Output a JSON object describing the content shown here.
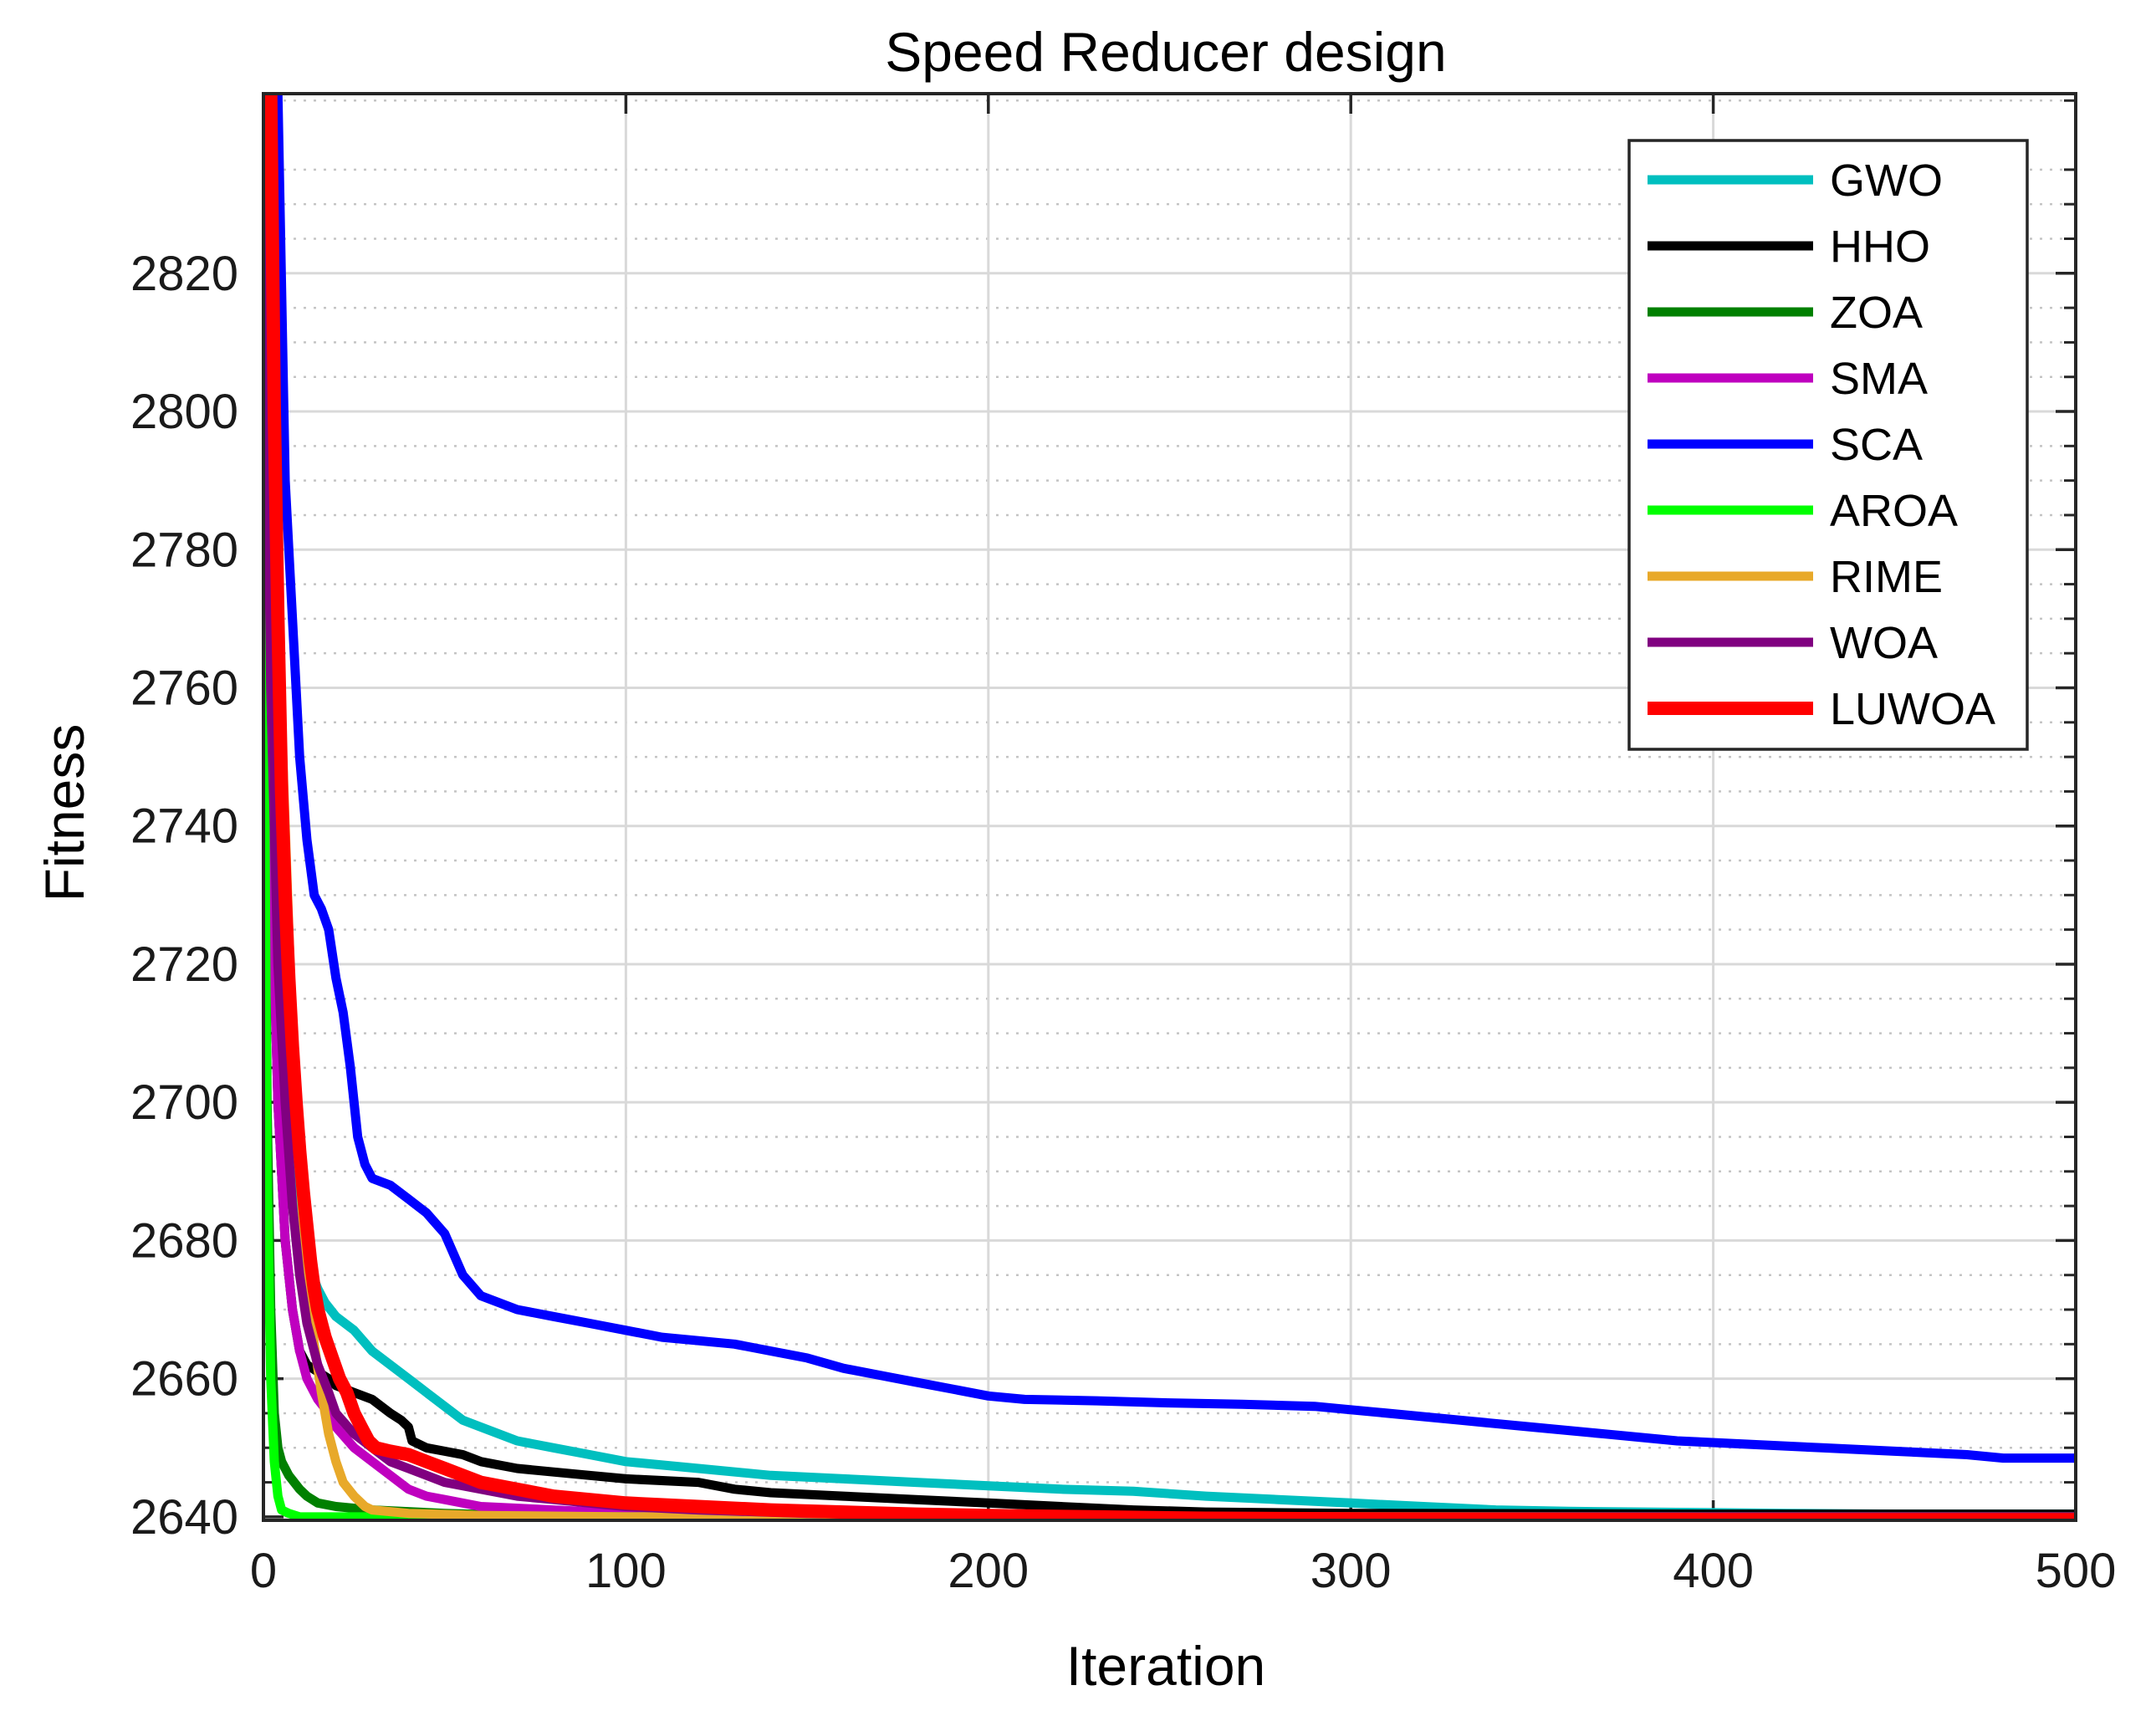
{
  "chart_data": {
    "type": "line",
    "title": "Speed Reducer design",
    "xlabel": "Iteration",
    "ylabel": "Fitness",
    "xlim": [
      0,
      500
    ],
    "ylim": [
      2639.5,
      2846
    ],
    "x_ticks": [
      0,
      100,
      200,
      300,
      400,
      500
    ],
    "y_ticks": [
      2640,
      2660,
      2680,
      2700,
      2720,
      2740,
      2760,
      2780,
      2800,
      2820
    ],
    "grid": true,
    "minor_grid": true,
    "legend_position": "top-right",
    "series": [
      {
        "name": "GWO",
        "color": "#00bfbf",
        "points": [
          [
            0,
            2845
          ],
          [
            2,
            2760
          ],
          [
            5,
            2715
          ],
          [
            8,
            2690
          ],
          [
            10,
            2680
          ],
          [
            12,
            2677
          ],
          [
            15,
            2673
          ],
          [
            17,
            2671
          ],
          [
            20,
            2669
          ],
          [
            25,
            2667
          ],
          [
            30,
            2664
          ],
          [
            35,
            2662
          ],
          [
            40,
            2660
          ],
          [
            45,
            2658
          ],
          [
            50,
            2656
          ],
          [
            55,
            2654
          ],
          [
            60,
            2653
          ],
          [
            70,
            2651
          ],
          [
            80,
            2650
          ],
          [
            90,
            2649
          ],
          [
            100,
            2648
          ],
          [
            120,
            2647
          ],
          [
            140,
            2646
          ],
          [
            160,
            2645.5
          ],
          [
            180,
            2645
          ],
          [
            200,
            2644.5
          ],
          [
            220,
            2644
          ],
          [
            240,
            2643.7
          ],
          [
            260,
            2643
          ],
          [
            280,
            2642.5
          ],
          [
            300,
            2642
          ],
          [
            320,
            2641.5
          ],
          [
            340,
            2641
          ],
          [
            360,
            2640.8
          ],
          [
            380,
            2640.7
          ],
          [
            400,
            2640.6
          ],
          [
            420,
            2640.5
          ],
          [
            450,
            2640.4
          ],
          [
            500,
            2640.4
          ]
        ]
      },
      {
        "name": "HHO",
        "color": "#000000",
        "points": [
          [
            0,
            2845
          ],
          [
            2,
            2740
          ],
          [
            4,
            2700
          ],
          [
            6,
            2680
          ],
          [
            8,
            2670
          ],
          [
            10,
            2664
          ],
          [
            12,
            2662
          ],
          [
            15,
            2661
          ],
          [
            18,
            2660
          ],
          [
            20,
            2659
          ],
          [
            25,
            2658
          ],
          [
            30,
            2657
          ],
          [
            35,
            2655
          ],
          [
            38,
            2654
          ],
          [
            40,
            2653
          ],
          [
            41,
            2651
          ],
          [
            45,
            2650
          ],
          [
            50,
            2649.5
          ],
          [
            55,
            2649
          ],
          [
            60,
            2648
          ],
          [
            70,
            2647
          ],
          [
            80,
            2646.5
          ],
          [
            90,
            2646
          ],
          [
            100,
            2645.5
          ],
          [
            120,
            2645
          ],
          [
            130,
            2644
          ],
          [
            140,
            2643.5
          ],
          [
            160,
            2643
          ],
          [
            180,
            2642.5
          ],
          [
            200,
            2642
          ],
          [
            220,
            2641.5
          ],
          [
            240,
            2641
          ],
          [
            260,
            2640.7
          ],
          [
            300,
            2640.5
          ],
          [
            400,
            2640.4
          ],
          [
            500,
            2640.4
          ]
        ]
      },
      {
        "name": "ZOA",
        "color": "#008000",
        "points": [
          [
            0,
            2780
          ],
          [
            1,
            2700
          ],
          [
            2,
            2670
          ],
          [
            3,
            2655
          ],
          [
            4,
            2650
          ],
          [
            5,
            2648
          ],
          [
            7,
            2646
          ],
          [
            10,
            2644
          ],
          [
            12,
            2643
          ],
          [
            15,
            2642
          ],
          [
            20,
            2641.5
          ],
          [
            30,
            2641
          ],
          [
            50,
            2640.5
          ],
          [
            70,
            2640.2
          ],
          [
            100,
            2640
          ],
          [
            200,
            2640
          ],
          [
            500,
            2640
          ]
        ]
      },
      {
        "name": "SMA",
        "color": "#bf00bf",
        "points": [
          [
            0,
            2845
          ],
          [
            2,
            2740
          ],
          [
            4,
            2700
          ],
          [
            6,
            2680
          ],
          [
            8,
            2670
          ],
          [
            10,
            2664
          ],
          [
            12,
            2660
          ],
          [
            15,
            2657
          ],
          [
            18,
            2655
          ],
          [
            20,
            2653
          ],
          [
            25,
            2650
          ],
          [
            30,
            2648
          ],
          [
            35,
            2646
          ],
          [
            40,
            2644
          ],
          [
            45,
            2643
          ],
          [
            50,
            2642.5
          ],
          [
            60,
            2641.5
          ],
          [
            80,
            2641
          ],
          [
            100,
            2640.5
          ],
          [
            150,
            2640.2
          ],
          [
            200,
            2640
          ],
          [
            500,
            2640
          ]
        ]
      },
      {
        "name": "SCA",
        "color": "#0000ff",
        "points": [
          [
            0,
            2846
          ],
          [
            4,
            2846
          ],
          [
            6,
            2790
          ],
          [
            8,
            2770
          ],
          [
            10,
            2750
          ],
          [
            12,
            2738
          ],
          [
            14,
            2730
          ],
          [
            16,
            2728
          ],
          [
            18,
            2725
          ],
          [
            20,
            2718
          ],
          [
            22,
            2713
          ],
          [
            24,
            2705
          ],
          [
            26,
            2695
          ],
          [
            28,
            2691
          ],
          [
            30,
            2689
          ],
          [
            35,
            2688
          ],
          [
            40,
            2686
          ],
          [
            45,
            2684
          ],
          [
            50,
            2681
          ],
          [
            55,
            2675
          ],
          [
            60,
            2672
          ],
          [
            65,
            2671
          ],
          [
            70,
            2670
          ],
          [
            80,
            2669
          ],
          [
            90,
            2668
          ],
          [
            100,
            2667
          ],
          [
            110,
            2666
          ],
          [
            120,
            2665.5
          ],
          [
            130,
            2665
          ],
          [
            140,
            2664
          ],
          [
            150,
            2663
          ],
          [
            160,
            2661.5
          ],
          [
            170,
            2660.5
          ],
          [
            180,
            2659.5
          ],
          [
            190,
            2658.5
          ],
          [
            200,
            2657.5
          ],
          [
            210,
            2657
          ],
          [
            230,
            2656.8
          ],
          [
            250,
            2656.5
          ],
          [
            270,
            2656.3
          ],
          [
            290,
            2656
          ],
          [
            300,
            2655.5
          ],
          [
            310,
            2655
          ],
          [
            330,
            2654
          ],
          [
            350,
            2653
          ],
          [
            370,
            2652
          ],
          [
            390,
            2651
          ],
          [
            410,
            2650.5
          ],
          [
            430,
            2650
          ],
          [
            450,
            2649.5
          ],
          [
            470,
            2649
          ],
          [
            480,
            2648.5
          ],
          [
            500,
            2648.5
          ]
        ]
      },
      {
        "name": "AROA",
        "color": "#00ff00",
        "points": [
          [
            0,
            2780
          ],
          [
            1,
            2690
          ],
          [
            2,
            2660
          ],
          [
            3,
            2648
          ],
          [
            4,
            2643
          ],
          [
            5,
            2641
          ],
          [
            7,
            2640.5
          ],
          [
            10,
            2640
          ],
          [
            500,
            2640
          ]
        ]
      },
      {
        "name": "RIME",
        "color": "#e8a92a",
        "points": [
          [
            0,
            2846
          ],
          [
            2,
            2800
          ],
          [
            4,
            2770
          ],
          [
            6,
            2740
          ],
          [
            8,
            2710
          ],
          [
            10,
            2690
          ],
          [
            12,
            2675
          ],
          [
            14,
            2665
          ],
          [
            16,
            2658
          ],
          [
            18,
            2652
          ],
          [
            20,
            2648
          ],
          [
            22,
            2645
          ],
          [
            25,
            2643
          ],
          [
            28,
            2641.5
          ],
          [
            30,
            2641
          ],
          [
            40,
            2640.5
          ],
          [
            60,
            2640.2
          ],
          [
            100,
            2640
          ],
          [
            500,
            2640
          ]
        ]
      },
      {
        "name": "WOA",
        "color": "#800080",
        "points": [
          [
            0,
            2845
          ],
          [
            2,
            2760
          ],
          [
            4,
            2720
          ],
          [
            6,
            2700
          ],
          [
            8,
            2685
          ],
          [
            10,
            2675
          ],
          [
            12,
            2668
          ],
          [
            15,
            2662
          ],
          [
            18,
            2658
          ],
          [
            20,
            2655
          ],
          [
            25,
            2652
          ],
          [
            30,
            2650
          ],
          [
            35,
            2648
          ],
          [
            40,
            2647
          ],
          [
            50,
            2645
          ],
          [
            60,
            2644
          ],
          [
            70,
            2643
          ],
          [
            80,
            2642.5
          ],
          [
            100,
            2641.5
          ],
          [
            120,
            2641
          ],
          [
            150,
            2640.5
          ],
          [
            200,
            2640.2
          ],
          [
            300,
            2640
          ],
          [
            500,
            2640
          ]
        ]
      },
      {
        "name": "LUWOA",
        "color": "#ff0000",
        "points": [
          [
            0,
            2846
          ],
          [
            2,
            2846
          ],
          [
            3,
            2800
          ],
          [
            4,
            2770
          ],
          [
            5,
            2745
          ],
          [
            6,
            2730
          ],
          [
            7,
            2718
          ],
          [
            8,
            2708
          ],
          [
            9,
            2700
          ],
          [
            10,
            2693
          ],
          [
            11,
            2687
          ],
          [
            12,
            2682
          ],
          [
            13,
            2677
          ],
          [
            14,
            2673
          ],
          [
            15,
            2670
          ],
          [
            17,
            2666
          ],
          [
            19,
            2663
          ],
          [
            21,
            2660
          ],
          [
            23,
            2658
          ],
          [
            25,
            2655
          ],
          [
            27,
            2653
          ],
          [
            29,
            2651
          ],
          [
            31,
            2650
          ],
          [
            35,
            2649.5
          ],
          [
            40,
            2649
          ],
          [
            45,
            2648
          ],
          [
            50,
            2647
          ],
          [
            55,
            2646
          ],
          [
            60,
            2645
          ],
          [
            70,
            2644
          ],
          [
            80,
            2643
          ],
          [
            90,
            2642.5
          ],
          [
            100,
            2642
          ],
          [
            120,
            2641.5
          ],
          [
            140,
            2641
          ],
          [
            160,
            2640.7
          ],
          [
            180,
            2640.4
          ],
          [
            200,
            2640.2
          ],
          [
            230,
            2640
          ],
          [
            260,
            2639.8
          ],
          [
            300,
            2639.7
          ],
          [
            400,
            2639.6
          ],
          [
            500,
            2639.6
          ]
        ]
      }
    ]
  }
}
